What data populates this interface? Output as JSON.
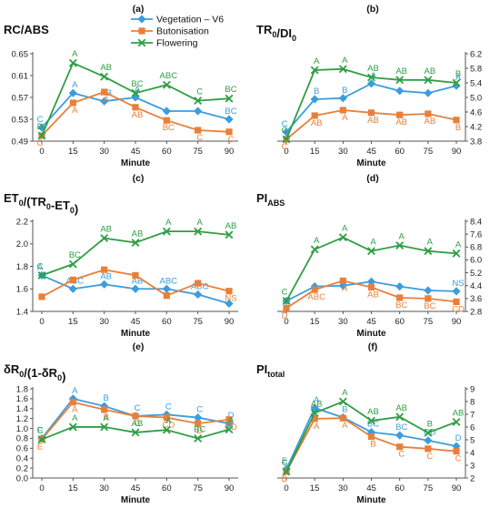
{
  "chart_data": [
    {
      "panel": "(a)",
      "title": "RC/ABS",
      "title_sub": "",
      "title_post": "",
      "type": "line",
      "xlabel": "Minute",
      "x": [
        0,
        15,
        30,
        45,
        60,
        75,
        90
      ],
      "axis_side": "left",
      "ylim": [
        0.49,
        0.65
      ],
      "yticks": [
        "0.49",
        "0.53",
        "0.57",
        "0.61",
        "0.65"
      ],
      "series": [
        {
          "name": "Vegetation – V6",
          "color": "#3b9ddd",
          "marker": "diamond",
          "values": [
            0.515,
            0.578,
            0.563,
            0.57,
            0.545,
            0.545,
            0.53
          ],
          "letters": [
            "C",
            "A",
            "AB",
            "A",
            "",
            "",
            "BC"
          ]
        },
        {
          "name": "Butonisation",
          "color": "#e8803a",
          "marker": "square",
          "values": [
            0.5,
            0.56,
            0.58,
            0.552,
            0.528,
            0.51,
            0.507
          ],
          "letters": [
            "C",
            "A",
            "A",
            "AB",
            "BC",
            "C",
            "C"
          ]
        },
        {
          "name": "Flowering",
          "color": "#2f9e44",
          "marker": "x",
          "values": [
            0.5,
            0.633,
            0.608,
            0.578,
            0.593,
            0.564,
            0.568
          ],
          "letters": [
            "D",
            "A",
            "AB",
            "BC",
            "ABC",
            "C",
            "BC"
          ]
        }
      ]
    },
    {
      "panel": "(b)",
      "title": "TR",
      "title_sub": "0",
      "title_post": "/DI",
      "title_sub2": "0",
      "type": "line",
      "xlabel": "Minute",
      "x": [
        0,
        15,
        30,
        45,
        60,
        75,
        90
      ],
      "axis_side": "right",
      "ylim": [
        3.8,
        6.2
      ],
      "yticks": [
        "3.8",
        "4.2",
        "4.6",
        "5.0",
        "5.4",
        "5.8",
        "6.2"
      ],
      "series": [
        {
          "name": "Vegetation – V6",
          "color": "#3b9ddd",
          "marker": "diamond",
          "values": [
            4.05,
            4.95,
            4.98,
            5.38,
            5.18,
            5.12,
            5.32
          ],
          "letters": [
            "C",
            "B",
            "B",
            "A",
            "",
            "",
            "A"
          ]
        },
        {
          "name": "Butonisation",
          "color": "#e8803a",
          "marker": "square",
          "values": [
            3.85,
            4.5,
            4.65,
            4.58,
            4.52,
            4.55,
            4.38
          ],
          "letters": [
            "C",
            "AB",
            "A",
            "AB",
            "AB",
            "AB",
            "B"
          ]
        },
        {
          "name": "Flowering",
          "color": "#2f9e44",
          "marker": "x",
          "values": [
            3.85,
            5.75,
            5.78,
            5.55,
            5.48,
            5.48,
            5.4
          ],
          "letters": [
            "C",
            "A",
            "A",
            "AB",
            "AB",
            "AB",
            "B"
          ]
        }
      ]
    },
    {
      "panel": "(c)",
      "title": "ET",
      "title_sub": "0",
      "title_post": "/(TR",
      "title_sub2": "0",
      "title_post2": "-ET",
      "title_sub3": "0",
      "title_end": ")",
      "type": "line",
      "xlabel": "Minute",
      "x": [
        0,
        15,
        30,
        45,
        60,
        75,
        90
      ],
      "axis_side": "left",
      "ylim": [
        1.4,
        2.2
      ],
      "yticks": [
        "1.4",
        "1.6",
        "1.8",
        "2.0",
        "2.2"
      ],
      "series": [
        {
          "name": "Vegetation – V6",
          "color": "#3b9ddd",
          "marker": "diamond",
          "values": [
            1.72,
            1.6,
            1.64,
            1.6,
            1.6,
            1.55,
            1.47
          ],
          "letters": [
            "A",
            "ABC",
            "AB",
            "AB",
            "ABC",
            "ABC",
            ""
          ]
        },
        {
          "name": "Butonisation",
          "color": "#e8803a",
          "marker": "square",
          "values": [
            1.53,
            1.68,
            1.77,
            1.72,
            1.54,
            1.65,
            1.58
          ],
          "letters": [
            "",
            "",
            "",
            "",
            "",
            "",
            "NS"
          ]
        },
        {
          "name": "Flowering",
          "color": "#2f9e44",
          "marker": "x",
          "values": [
            1.72,
            1.82,
            2.05,
            2.01,
            2.11,
            2.11,
            2.08
          ],
          "letters": [
            "C",
            "BC",
            "AB",
            "AB",
            "A",
            "A",
            "AB"
          ]
        }
      ]
    },
    {
      "panel": "(d)",
      "title": "PI",
      "title_sub": "ABS",
      "title_post": "",
      "type": "line",
      "xlabel": "Minute",
      "x": [
        0,
        15,
        30,
        45,
        60,
        75,
        90
      ],
      "axis_side": "right",
      "ylim": [
        2.8,
        8.4
      ],
      "yticks": [
        "2.8",
        "3.6",
        "4.4",
        "5.2",
        "6.0",
        "6.8",
        "7.6",
        "8.4"
      ],
      "series": [
        {
          "name": "Vegetation – V6",
          "color": "#3b9ddd",
          "marker": "diamond",
          "values": [
            3.45,
            4.35,
            4.4,
            4.65,
            4.35,
            4.1,
            4.05
          ],
          "letters": [
            "",
            "",
            "",
            "",
            "",
            "",
            "NS"
          ]
        },
        {
          "name": "Butonisation",
          "color": "#e8803a",
          "marker": "square",
          "values": [
            3.0,
            4.15,
            4.7,
            4.3,
            3.65,
            3.6,
            3.4
          ],
          "letters": [
            "D",
            "ABC",
            "A",
            "AB",
            "BC",
            "BC",
            "CD"
          ]
        },
        {
          "name": "Flowering",
          "color": "#2f9e44",
          "marker": "x",
          "values": [
            3.45,
            6.65,
            7.4,
            6.55,
            6.9,
            6.55,
            6.4
          ],
          "letters": [
            "C",
            "A",
            "A",
            "A",
            "A",
            "A",
            "A"
          ]
        }
      ]
    },
    {
      "panel": "(e)",
      "title": "δR",
      "title_sub": "0",
      "title_post": "/(1-δR",
      "title_sub2": "0",
      "title_end": ")",
      "type": "line",
      "xlabel": "Minute",
      "x": [
        0,
        15,
        30,
        45,
        60,
        75,
        90
      ],
      "axis_side": "left",
      "ylim": [
        0.0,
        1.8
      ],
      "yticks": [
        "0.0",
        "0.2",
        "0.4",
        "0.6",
        "0.8",
        "1.0",
        "1.2",
        "1.4",
        "1.6",
        "1.8"
      ],
      "series": [
        {
          "name": "Vegetation – V6",
          "color": "#3b9ddd",
          "marker": "diamond",
          "values": [
            0.8,
            1.6,
            1.45,
            1.25,
            1.28,
            1.22,
            1.1
          ],
          "letters": [
            "E",
            "A",
            "B",
            "C",
            "C",
            "C",
            "D"
          ]
        },
        {
          "name": "Butonisation",
          "color": "#e8803a",
          "marker": "square",
          "values": [
            0.78,
            1.53,
            1.38,
            1.25,
            1.22,
            1.1,
            1.18
          ],
          "letters": [
            "E",
            "A",
            "B",
            "C",
            "CD",
            "D",
            "CD"
          ]
        },
        {
          "name": "Flowering",
          "color": "#2f9e44",
          "marker": "x",
          "values": [
            0.78,
            1.03,
            1.03,
            0.92,
            0.97,
            0.8,
            0.98
          ],
          "letters": [
            "C",
            "A",
            "A",
            "AB",
            "A",
            "BC",
            "A"
          ]
        }
      ]
    },
    {
      "panel": "(f)",
      "title": "PI",
      "title_sub": "total",
      "title_post": "",
      "type": "line",
      "xlabel": "Minute",
      "x": [
        0,
        15,
        30,
        45,
        60,
        75,
        90
      ],
      "axis_side": "right",
      "ylim": [
        2,
        9
      ],
      "yticks": [
        "2",
        "3",
        "4",
        "5",
        "6",
        "7",
        "8",
        "9"
      ],
      "series": [
        {
          "name": "Vegetation – V6",
          "color": "#3b9ddd",
          "marker": "diamond",
          "values": [
            2.7,
            7.5,
            6.75,
            5.6,
            5.35,
            4.95,
            4.5
          ],
          "letters": [
            "E",
            "A",
            "B",
            "BC",
            "BC",
            "CD",
            "D"
          ]
        },
        {
          "name": "Butonisation",
          "color": "#e8803a",
          "marker": "square",
          "values": [
            2.5,
            6.65,
            6.7,
            5.25,
            4.45,
            4.3,
            4.1
          ],
          "letters": [
            "D",
            "A",
            "A",
            "B",
            "C",
            "C",
            "C"
          ]
        },
        {
          "name": "Flowering",
          "color": "#2f9e44",
          "marker": "x",
          "values": [
            2.5,
            7.1,
            8.0,
            6.5,
            6.8,
            5.55,
            6.4
          ],
          "letters": [
            "C",
            "AB",
            "A",
            "AB",
            "AB",
            "B",
            "AB"
          ]
        }
      ]
    }
  ],
  "legend": [
    {
      "name": "Vegetation – V6",
      "color": "#3b9ddd",
      "marker": "diamond"
    },
    {
      "name": "Butonisation",
      "color": "#e8803a",
      "marker": "square"
    },
    {
      "name": "Flowering",
      "color": "#2f9e44",
      "marker": "x"
    }
  ]
}
